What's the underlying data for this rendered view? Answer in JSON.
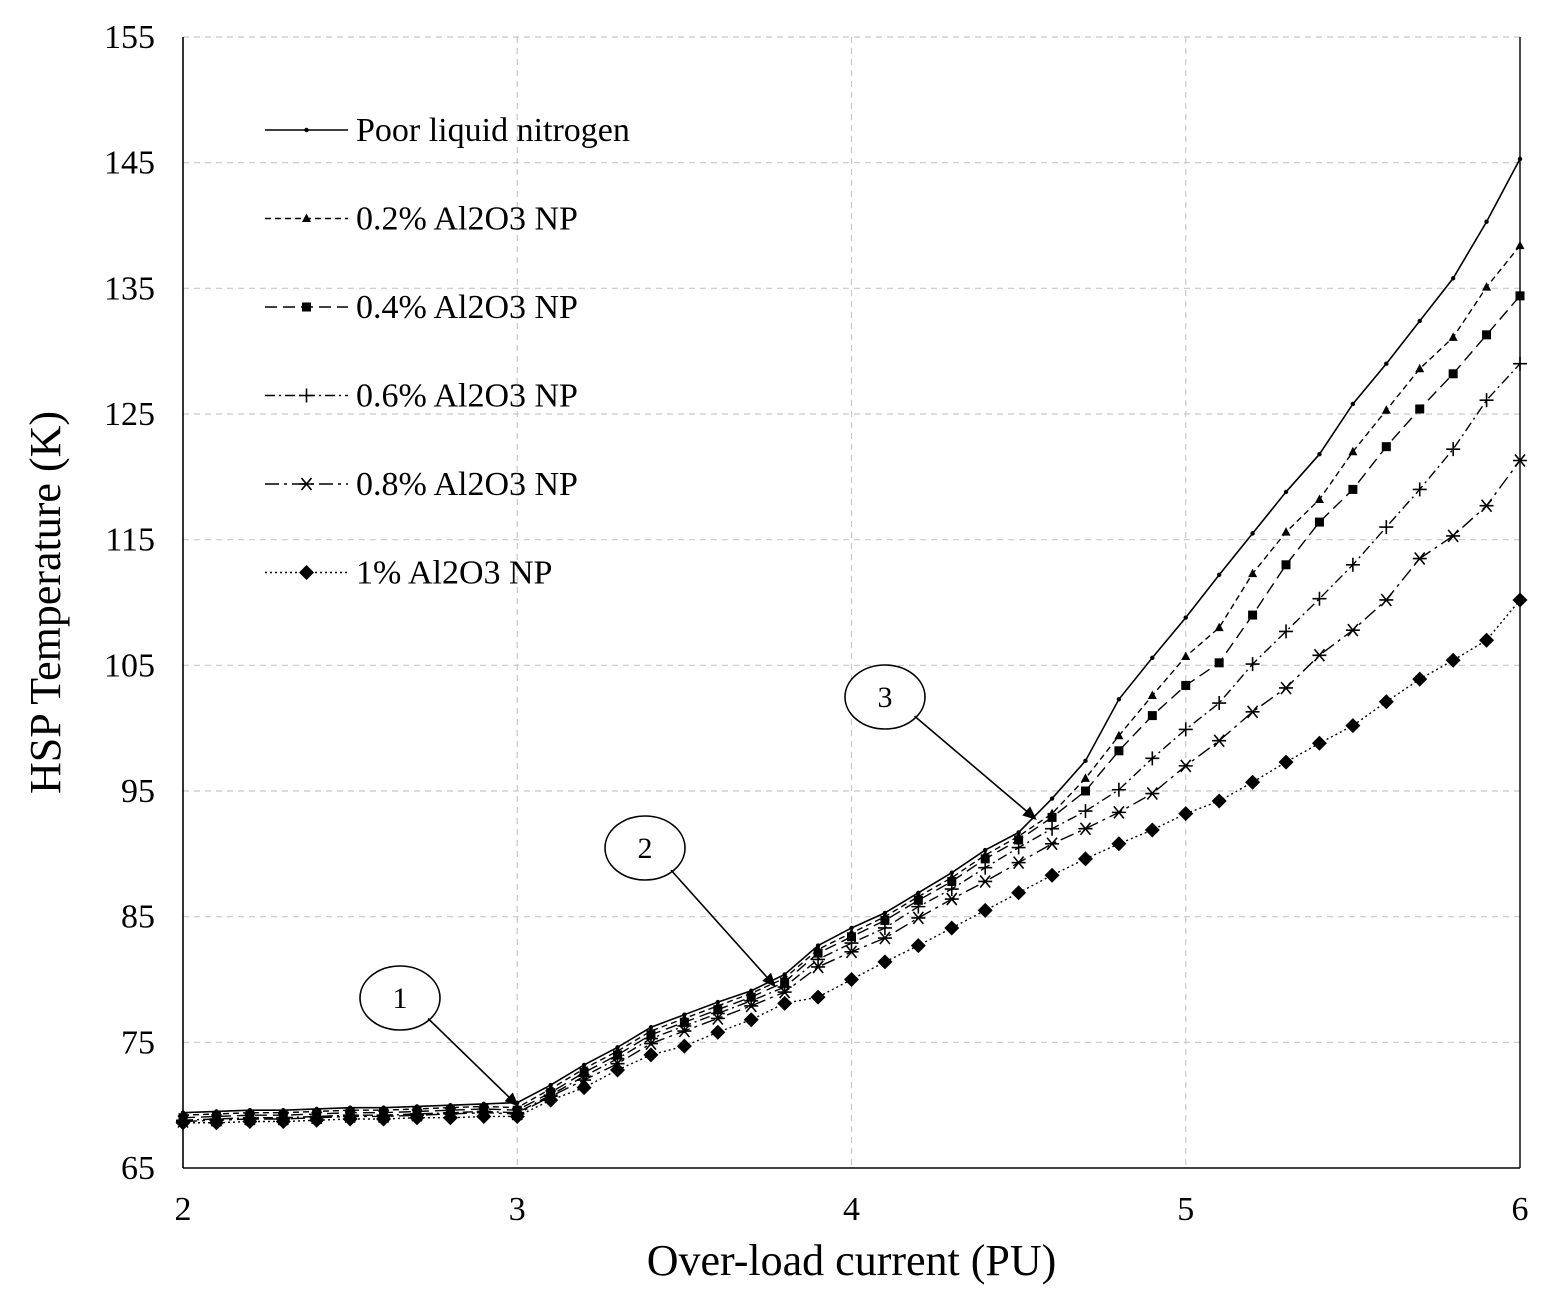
{
  "chart_data": {
    "type": "line",
    "title": "",
    "xlabel": "Over-load current (PU)",
    "ylabel": "HSP Temperature (K)",
    "xlim": [
      2,
      6
    ],
    "ylim": [
      65,
      155
    ],
    "xticks": [
      2,
      3,
      4,
      5,
      6
    ],
    "yticks": [
      65,
      75,
      85,
      95,
      105,
      115,
      125,
      135,
      145,
      155
    ],
    "grid": true,
    "legend_position": "top-left",
    "x": [
      2.0,
      2.1,
      2.2,
      2.3,
      2.4,
      2.5,
      2.6,
      2.7,
      2.8,
      2.9,
      3.0,
      3.1,
      3.2,
      3.3,
      3.4,
      3.5,
      3.6,
      3.7,
      3.8,
      3.9,
      4.0,
      4.1,
      4.2,
      4.3,
      4.4,
      4.5,
      4.6,
      4.7,
      4.8,
      4.9,
      5.0,
      5.1,
      5.2,
      5.3,
      5.4,
      5.5,
      5.6,
      5.7,
      5.8,
      5.9,
      6.0
    ],
    "series": [
      {
        "name": "Poor liquid nitrogen",
        "marker": "dot",
        "dash": "",
        "values": [
          69.4,
          69.5,
          69.6,
          69.6,
          69.7,
          69.8,
          69.8,
          69.9,
          70.0,
          70.1,
          70.2,
          71.6,
          73.2,
          74.6,
          76.2,
          77.2,
          78.2,
          79.1,
          80.4,
          82.7,
          84.1,
          85.3,
          86.9,
          88.5,
          90.3,
          91.7,
          94.4,
          97.4,
          102.3,
          105.6,
          108.8,
          112.2,
          115.5,
          118.8,
          121.8,
          125.8,
          129.0,
          132.4,
          135.8,
          140.3,
          145.3
        ]
      },
      {
        "name": "0.2% Al2O3 NP",
        "marker": "triangle",
        "dash": "6,4",
        "values": [
          69.2,
          69.3,
          69.4,
          69.4,
          69.5,
          69.6,
          69.6,
          69.7,
          69.8,
          69.9,
          69.8,
          71.3,
          72.9,
          74.3,
          75.9,
          76.9,
          77.9,
          78.9,
          80.1,
          82.4,
          83.7,
          85.0,
          86.6,
          88.1,
          89.9,
          91.4,
          93.2,
          96.0,
          99.4,
          102.6,
          105.7,
          108.0,
          112.3,
          115.6,
          118.2,
          122.0,
          125.3,
          128.6,
          131.1,
          135.1,
          138.4
        ]
      },
      {
        "name": "0.4% Al2O3 NP",
        "marker": "square",
        "dash": "12,6",
        "values": [
          69.0,
          69.1,
          69.2,
          69.2,
          69.3,
          69.4,
          69.4,
          69.5,
          69.6,
          69.7,
          69.6,
          71.0,
          72.6,
          74.0,
          75.6,
          76.6,
          77.6,
          78.6,
          79.8,
          82.1,
          83.4,
          84.7,
          86.3,
          87.8,
          89.6,
          91.1,
          92.9,
          95.0,
          98.2,
          101.0,
          103.4,
          105.2,
          109.0,
          113.0,
          116.4,
          119.0,
          122.4,
          125.4,
          128.2,
          131.3,
          134.4
        ]
      },
      {
        "name": "0.6% Al2O3 NP",
        "marker": "plus",
        "dash": "10,4,2,4",
        "values": [
          68.8,
          68.9,
          69.0,
          69.0,
          69.1,
          69.2,
          69.2,
          69.3,
          69.4,
          69.5,
          69.4,
          70.8,
          72.3,
          73.7,
          75.3,
          76.3,
          77.3,
          78.3,
          79.4,
          81.6,
          82.9,
          84.1,
          85.8,
          87.2,
          88.9,
          90.5,
          92.0,
          93.4,
          95.1,
          97.6,
          99.9,
          102.0,
          105.1,
          107.7,
          110.3,
          113.0,
          116.0,
          119.0,
          122.2,
          126.1,
          129.0
        ]
      },
      {
        "name": "0.8% Al2O3 NP",
        "marker": "asterisk",
        "dash": "14,5,3,5",
        "values": [
          68.7,
          68.8,
          68.9,
          68.9,
          69.0,
          69.1,
          69.1,
          69.2,
          69.3,
          69.4,
          69.3,
          70.7,
          72.0,
          73.3,
          74.9,
          75.9,
          76.9,
          77.9,
          79.0,
          81.0,
          82.2,
          83.3,
          84.9,
          86.4,
          87.8,
          89.3,
          90.8,
          92.0,
          93.3,
          94.8,
          97.0,
          99.0,
          101.3,
          103.2,
          105.8,
          107.8,
          110.2,
          113.5,
          115.3,
          117.7,
          121.3
        ]
      },
      {
        "name": "1% Al2O3 NP",
        "marker": "diamond",
        "dash": "2,3",
        "values": [
          68.6,
          68.6,
          68.7,
          68.7,
          68.8,
          68.9,
          68.9,
          69.0,
          69.0,
          69.1,
          69.1,
          70.4,
          71.4,
          72.8,
          74.0,
          74.7,
          75.8,
          76.8,
          78.1,
          78.6,
          80.0,
          81.4,
          82.7,
          84.1,
          85.5,
          86.9,
          88.3,
          89.6,
          90.8,
          91.9,
          93.2,
          94.2,
          95.7,
          97.3,
          98.8,
          100.2,
          102.1,
          103.9,
          105.4,
          107.0,
          110.2
        ]
      }
    ],
    "annotations": [
      {
        "label": "1",
        "points_to_x": 3.0,
        "points_to_y": 70.0
      },
      {
        "label": "2",
        "points_to_x": 3.77,
        "points_to_y": 79.5
      },
      {
        "label": "3",
        "points_to_x": 4.55,
        "points_to_y": 92.8
      }
    ]
  }
}
